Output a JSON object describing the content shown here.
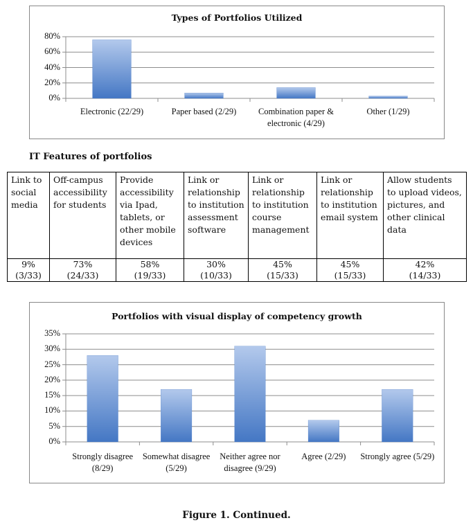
{
  "chart_data": [
    {
      "type": "bar",
      "title": "Types of Portfolios Utilized",
      "categories": [
        "Electronic (22/29)",
        "Paper based (2/29)",
        "Combination paper & electronic (4/29)",
        "Other (1/29)"
      ],
      "values": [
        76,
        7,
        14,
        3
      ],
      "color": "#4a7cc7",
      "ylim": [
        0,
        80
      ],
      "yticks": [
        {
          "value": 0,
          "label": "0%"
        },
        {
          "value": 20,
          "label": "20%"
        },
        {
          "value": 40,
          "label": "40%"
        },
        {
          "value": 60,
          "label": "60%"
        },
        {
          "value": 80,
          "label": "80%"
        }
      ],
      "grid": true
    },
    {
      "type": "bar",
      "title": "Portfolios with visual display of competency growth",
      "categories": [
        "Strongly disagree (8/29)",
        "Somewhat disagree (5/29)",
        "Neither agree nor disagree (9/29)",
        "Agree (2/29)",
        "Strongly agree (5/29)"
      ],
      "values": [
        28,
        17,
        31,
        7,
        17
      ],
      "color": "#4a7cc7",
      "ylim": [
        0,
        35
      ],
      "yticks": [
        {
          "value": 0,
          "label": "0%"
        },
        {
          "value": 5,
          "label": "5%"
        },
        {
          "value": 10,
          "label": "10%"
        },
        {
          "value": 15,
          "label": "15%"
        },
        {
          "value": 20,
          "label": "20%"
        },
        {
          "value": 25,
          "label": "25%"
        },
        {
          "value": 30,
          "label": "30%"
        },
        {
          "value": 35,
          "label": "35%"
        }
      ],
      "grid": true
    }
  ],
  "table": {
    "title": "IT Features of portfolios",
    "headers": [
      "Link to social media",
      "Off-campus accessibility for students",
      "Provide accessibility via Ipad, tablets, or other mobile devices",
      "Link or relationship to institution assessment software",
      "Link or relationship to institution course management",
      "Link or relationship to institution email system",
      "Allow students to upload videos, pictures, and other clinical data"
    ],
    "rows": [
      [
        {
          "percent": "9%",
          "count": "(3/33)"
        },
        {
          "percent": "73%",
          "count": "(24/33)"
        },
        {
          "percent": "58%",
          "count": "(19/33)"
        },
        {
          "percent": "30%",
          "count": "(10/33)"
        },
        {
          "percent": "45%",
          "count": "(15/33)"
        },
        {
          "percent": "45%",
          "count": "(15/33)"
        },
        {
          "percent": "42%",
          "count": "(14/33)"
        }
      ]
    ]
  },
  "caption": "Figure 1. Continued."
}
